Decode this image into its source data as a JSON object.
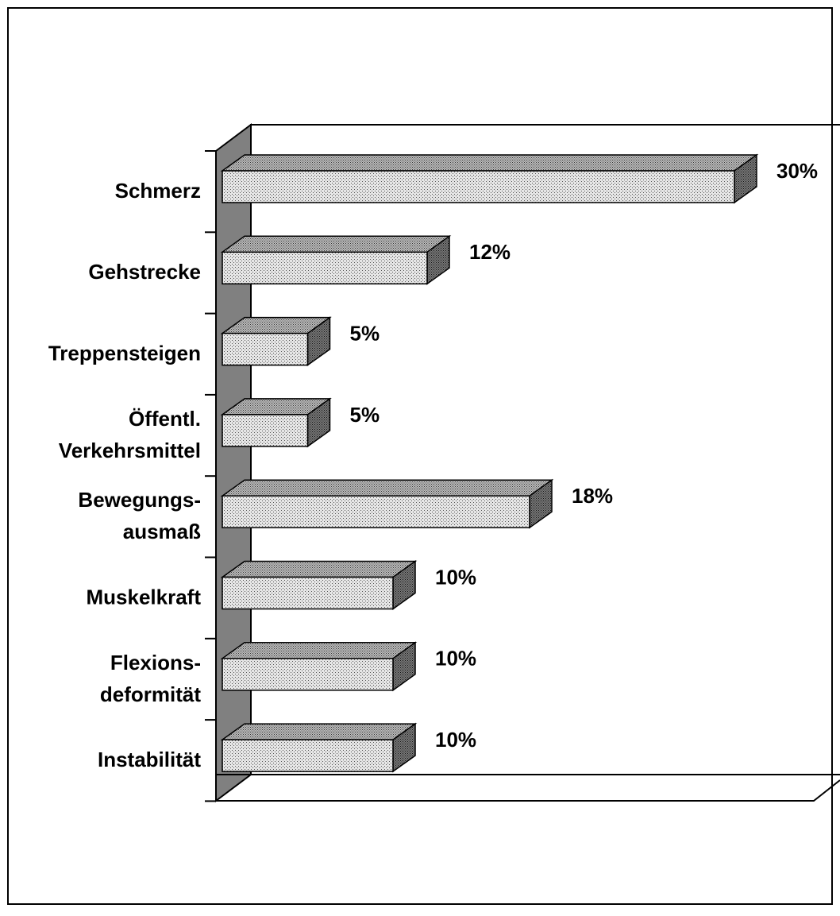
{
  "chart_data": {
    "type": "bar3d_horizontal",
    "categories": [
      "Schmerz",
      "Gehstrecke",
      "Treppensteigen",
      "Öffentl.\nVerkehrsmittel",
      "Bewegungs-\nausmaß",
      "Muskelkraft",
      "Flexions-\ndeformität",
      "Instabilität"
    ],
    "values": [
      30,
      12,
      5,
      5,
      18,
      10,
      10,
      10
    ],
    "value_labels": [
      "30%",
      "12%",
      "5%",
      "5%",
      "18%",
      "10%",
      "10%",
      "10%"
    ],
    "xlim": [
      0,
      35
    ],
    "color": "#c0c0c0"
  }
}
